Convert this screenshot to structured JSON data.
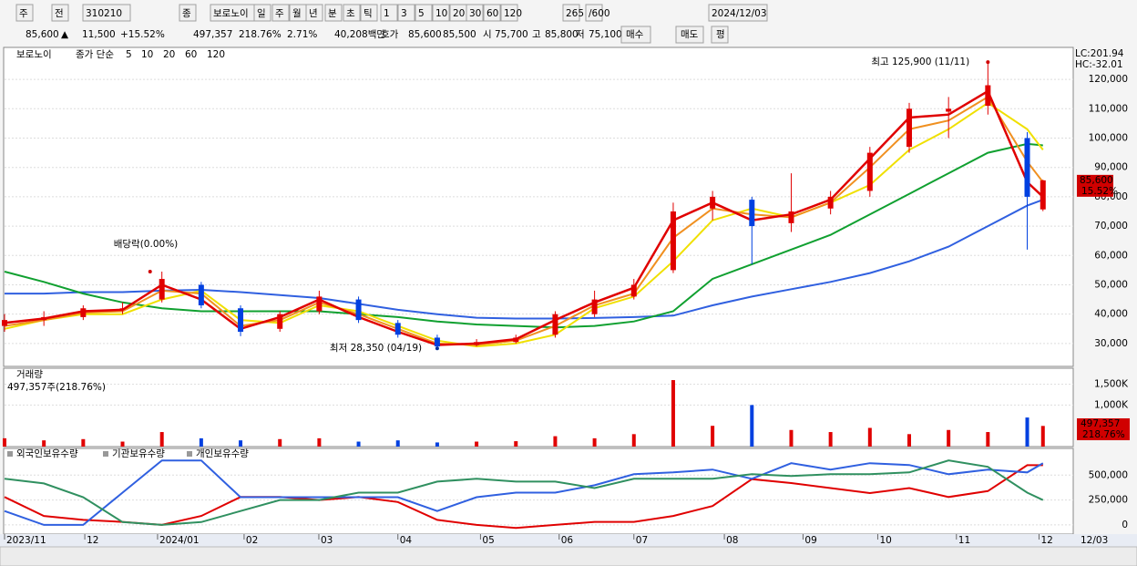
{
  "header": {
    "toolbar": [
      "주",
      "전",
      "310210",
      "종",
      "보로노이",
      "일",
      "주",
      "월",
      "년",
      "분",
      "초",
      "틱",
      "1",
      "3",
      "5",
      "10",
      "20",
      "30",
      "60",
      "120",
      "265",
      "/600",
      "2024/12/03"
    ],
    "quote": [
      "85,600",
      "▲",
      "11,500",
      "+15.52%",
      "497,357",
      "218.76%",
      "2.71%",
      "40,208백만",
      "호가",
      "85,600",
      "85,500",
      "시",
      "75,700",
      "고",
      "85,800",
      "저",
      "75,100",
      "매수",
      "매도",
      "평"
    ]
  },
  "chart_data": [
    {
      "type": "candlestick",
      "name": "보로노이",
      "legend_prefix": "종가 단순",
      "lc": "LC:201.94",
      "hc": "HC:-32.01",
      "x": [
        0,
        10,
        20,
        30,
        40,
        50,
        60,
        70,
        80,
        90,
        100,
        110,
        120,
        130,
        140,
        150,
        160,
        170,
        180,
        190,
        200,
        210,
        220,
        230,
        240,
        250,
        260,
        264
      ],
      "xlim": [
        0,
        271
      ],
      "ylim": [
        22200,
        130900
      ],
      "yticks": [
        {
          "value": 30000,
          "label": "30,000"
        },
        {
          "value": 40000,
          "label": "40,000"
        },
        {
          "value": 50000,
          "label": "50,000"
        },
        {
          "value": 60000,
          "label": "60,000"
        },
        {
          "value": 70000,
          "label": "70,000"
        },
        {
          "value": 80000,
          "label": "80,000"
        },
        {
          "value": 90000,
          "label": "90,000"
        },
        {
          "value": 100000,
          "label": "100,000"
        },
        {
          "value": 110000,
          "label": "110,000"
        },
        {
          "value": 120000,
          "label": "120,000"
        }
      ],
      "up_color": "#e00000",
      "down_color": "#0040e0",
      "open": [
        36000,
        38000,
        39000,
        42000,
        45000,
        50000,
        42000,
        35000,
        41000,
        45000,
        37000,
        32000,
        29500,
        30500,
        33000,
        40000,
        46000,
        55000,
        76000,
        79000,
        71000,
        76000,
        82000,
        97000,
        109000,
        111000,
        100000,
        75700
      ],
      "high": [
        40000,
        41000,
        43000,
        44000,
        54500,
        51000,
        43000,
        41000,
        48000,
        46000,
        38000,
        33000,
        31500,
        33000,
        41000,
        48000,
        52000,
        78000,
        82000,
        80000,
        88000,
        82000,
        97000,
        112000,
        114000,
        125900,
        102000,
        85800
      ],
      "low": [
        34000,
        36000,
        38000,
        40000,
        44000,
        42000,
        32500,
        34000,
        40000,
        37000,
        32000,
        28350,
        29000,
        30000,
        32000,
        39000,
        45000,
        54000,
        72000,
        57000,
        68000,
        74000,
        80000,
        95000,
        100000,
        108000,
        62000,
        75100
      ],
      "close": [
        38000,
        39000,
        42000,
        42000,
        52000,
        43000,
        34000,
        40000,
        46000,
        38000,
        33000,
        29000,
        30500,
        32000,
        40000,
        45000,
        50000,
        75000,
        80000,
        70000,
        75000,
        80000,
        95000,
        110000,
        110000,
        118000,
        80000,
        85600
      ],
      "series": [
        {
          "name": "5",
          "color": "#e00000",
          "values": [
            37000,
            38500,
            41000,
            41500,
            50000,
            45000,
            35000,
            39000,
            45000,
            39000,
            34000,
            29500,
            30000,
            31500,
            38000,
            44000,
            49000,
            72000,
            78000,
            72000,
            74000,
            79000,
            93000,
            107000,
            108000,
            116000,
            85000,
            80000
          ]
        },
        {
          "name": "10",
          "color": "#f09020",
          "values": [
            36000,
            38000,
            40500,
            41000,
            48000,
            47000,
            36000,
            38000,
            44000,
            40000,
            35000,
            30000,
            29500,
            31000,
            36000,
            43000,
            47000,
            66000,
            76000,
            74000,
            73000,
            78000,
            90000,
            103000,
            106000,
            114000,
            92000,
            85000
          ]
        },
        {
          "name": "20",
          "color": "#f0e000",
          "values": [
            35000,
            38000,
            40000,
            40000,
            45000,
            48000,
            38000,
            37000,
            43000,
            41000,
            36000,
            31000,
            29000,
            30000,
            33000,
            42000,
            46000,
            58000,
            72000,
            76000,
            73000,
            78000,
            84000,
            96000,
            103000,
            112000,
            103000,
            96000
          ]
        },
        {
          "name": "60",
          "color": "#10a030",
          "values": [
            54500,
            51000,
            47000,
            44000,
            42000,
            41000,
            41000,
            41000,
            41000,
            40000,
            39000,
            37500,
            36500,
            36000,
            35500,
            36000,
            37500,
            41000,
            52000,
            57000,
            62000,
            67000,
            74000,
            81000,
            88000,
            95000,
            98000,
            97500
          ]
        },
        {
          "name": "120",
          "color": "#3060e0",
          "values": [
            47000,
            47000,
            47500,
            47500,
            48000,
            48300,
            47500,
            46500,
            45500,
            43500,
            41500,
            40000,
            38800,
            38500,
            38500,
            38700,
            39000,
            39500,
            43000,
            46000,
            48500,
            51000,
            54000,
            58000,
            63000,
            70000,
            77000,
            79000
          ]
        }
      ],
      "annotations": [
        {
          "text": "최고 125,900 (11/11)",
          "x": 250,
          "y": 125900
        },
        {
          "text": "최저 28,350 (04/19)",
          "x": 110,
          "y": 28350
        },
        {
          "text": "배당락(0.00%)",
          "x": 37,
          "y": 54500
        }
      ],
      "last_label": "85,600",
      "change_label": "15.52%"
    },
    {
      "type": "bar",
      "title": "거래량",
      "subtitle": "497,357주(218.76%)",
      "ylim": [
        0,
        1886000
      ],
      "yticks": [
        {
          "value": 1000000,
          "label": "1,000K"
        },
        {
          "value": 1500000,
          "label": "1,500K"
        }
      ],
      "values": [
        200000,
        150000,
        180000,
        120000,
        350000,
        200000,
        150000,
        180000,
        200000,
        120000,
        150000,
        100000,
        120000,
        130000,
        250000,
        200000,
        300000,
        1600000,
        500000,
        1000000,
        400000,
        350000,
        450000,
        300000,
        400000,
        350000,
        700000,
        497357
      ],
      "last_label": "497,357",
      "ratio_label": "218.76%"
    },
    {
      "type": "line",
      "ylim": [
        -92600,
        768500
      ],
      "yticks": [
        0,
        {
          "value": 250000,
          "label": "250,000"
        },
        {
          "value": 500000,
          "label": "500,000"
        }
      ],
      "xticks": [
        {
          "value": 0,
          "label": "2023/11"
        },
        {
          "value": 20.4,
          "label": "12"
        },
        {
          "value": 38.9,
          "label": "2024/01"
        },
        {
          "value": 60.9,
          "label": "02"
        },
        {
          "value": 79.9,
          "label": "03"
        },
        {
          "value": 100,
          "label": "04"
        },
        {
          "value": 121,
          "label": "05"
        },
        {
          "value": 141,
          "label": "06"
        },
        {
          "value": 160,
          "label": "07"
        },
        {
          "value": 183,
          "label": "08"
        },
        {
          "value": 203,
          "label": "09"
        },
        {
          "value": 222,
          "label": "10"
        },
        {
          "value": 242,
          "label": "11"
        },
        {
          "value": 263,
          "label": "12"
        }
      ],
      "date_label": "12/03",
      "series": [
        {
          "name": "외국인보유수량",
          "color": "#e00000",
          "values": [
            280000,
            90000,
            50000,
            30000,
            0,
            90000,
            280000,
            280000,
            250000,
            280000,
            230000,
            50000,
            0,
            -30000,
            0,
            30000,
            30000,
            90000,
            190000,
            460000,
            420000,
            370000,
            320000,
            370000,
            280000,
            340000,
            600000,
            600000
          ]
        },
        {
          "name": "기관보유수량",
          "color": "#3060e0",
          "values": [
            139000,
            0,
            0,
            324000,
            648000,
            648000,
            278000,
            278000,
            278000,
            278000,
            278000,
            139000,
            278000,
            324000,
            324000,
            398000,
            509000,
            528000,
            556000,
            463000,
            620000,
            556000,
            620000,
            602000,
            509000,
            556000,
            528000,
            620000
          ]
        },
        {
          "name": "개인보유수량",
          "color": "#309060",
          "values": [
            463000,
            417000,
            278000,
            28000,
            0,
            28000,
            139000,
            250000,
            250000,
            324000,
            324000,
            435000,
            463000,
            435000,
            435000,
            370000,
            463000,
            463000,
            463000,
            509000,
            491000,
            509000,
            509000,
            528000,
            648000,
            583000,
            324000,
            250000
          ]
        }
      ]
    }
  ]
}
